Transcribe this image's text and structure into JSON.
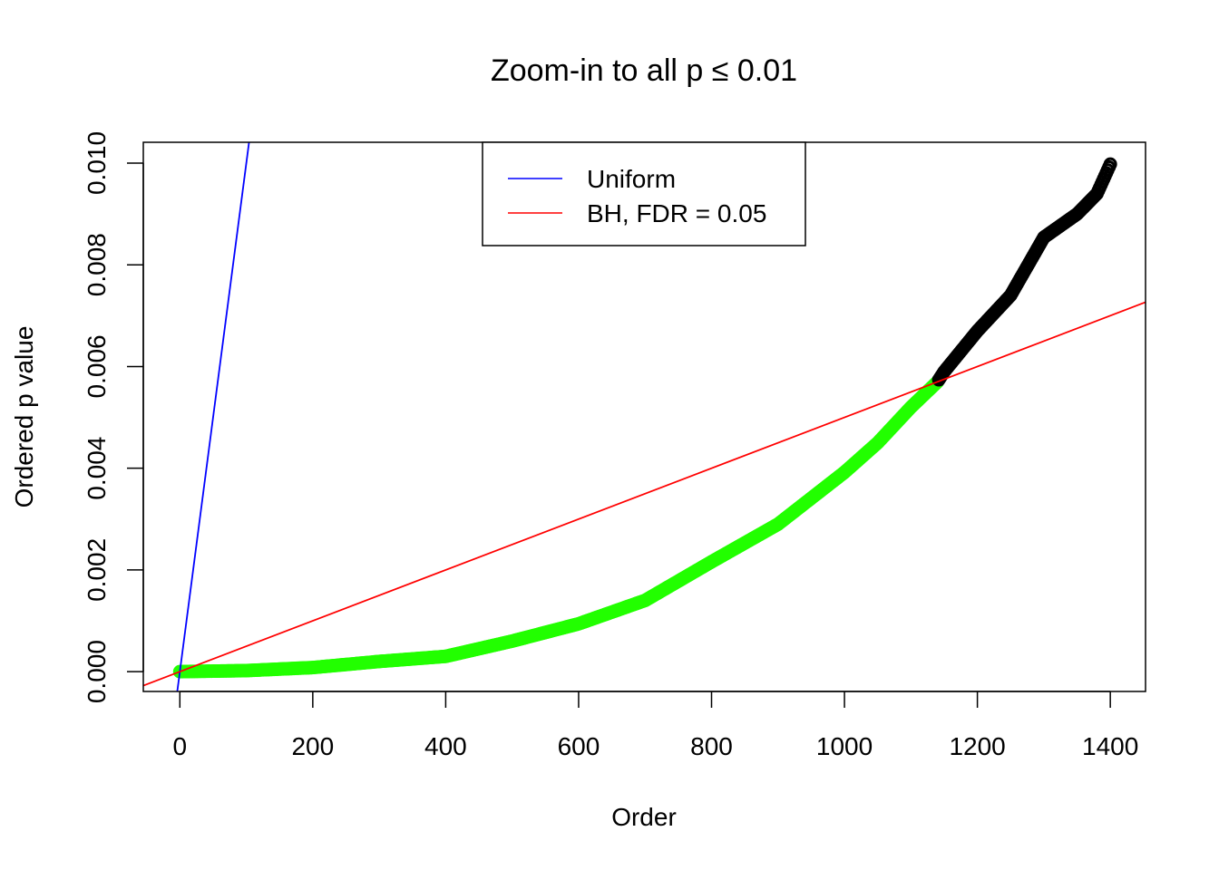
{
  "chart_data": {
    "type": "scatter",
    "title": "Zoom-in to all p ≤ 0.01",
    "xlabel": "Order",
    "ylabel": "Ordered p value",
    "xlim": [
      -55,
      1453
    ],
    "ylim": [
      -0.00039,
      0.01041
    ],
    "xticks": [
      0,
      200,
      400,
      600,
      800,
      1000,
      1200,
      1400
    ],
    "xtick_labels": [
      "0",
      "200",
      "400",
      "600",
      "800",
      "1000",
      "1200",
      "1400"
    ],
    "yticks": [
      0,
      0.002,
      0.004,
      0.006,
      0.008,
      0.01
    ],
    "ytick_labels": [
      "0.000",
      "0.002",
      "0.004",
      "0.006",
      "0.008",
      "0.010"
    ],
    "grid": false,
    "legend": {
      "placement": "top",
      "entries": [
        {
          "label": "Uniform",
          "color": "#0000FF"
        },
        {
          "label": "BH, FDR = 0.05",
          "color": "#FF0000"
        }
      ]
    },
    "lines": [
      {
        "name": "Uniform",
        "slope": 0.0001,
        "intercept": 0,
        "color": "#0000FF"
      },
      {
        "name": "BH, FDR = 0.05",
        "slope": 5e-06,
        "intercept": 0,
        "color": "#FF0000"
      }
    ],
    "points_curve": {
      "x": [
        0,
        100,
        200,
        300,
        400,
        500,
        600,
        700,
        800,
        900,
        1000,
        1050,
        1100,
        1140,
        1150,
        1200,
        1250,
        1300,
        1350,
        1380,
        1400
      ],
      "y": [
        0,
        2e-05,
        8e-05,
        0.0002,
        0.0003,
        0.0006,
        0.00094,
        0.0014,
        0.00216,
        0.0029,
        0.00392,
        0.0045,
        0.0052,
        0.0057,
        0.0059,
        0.0067,
        0.0074,
        0.00854,
        0.009,
        0.0094,
        0.00998
      ]
    },
    "significant_through": 1140,
    "colors": {
      "significant": "#22FF00",
      "not_significant": "#000000"
    }
  }
}
